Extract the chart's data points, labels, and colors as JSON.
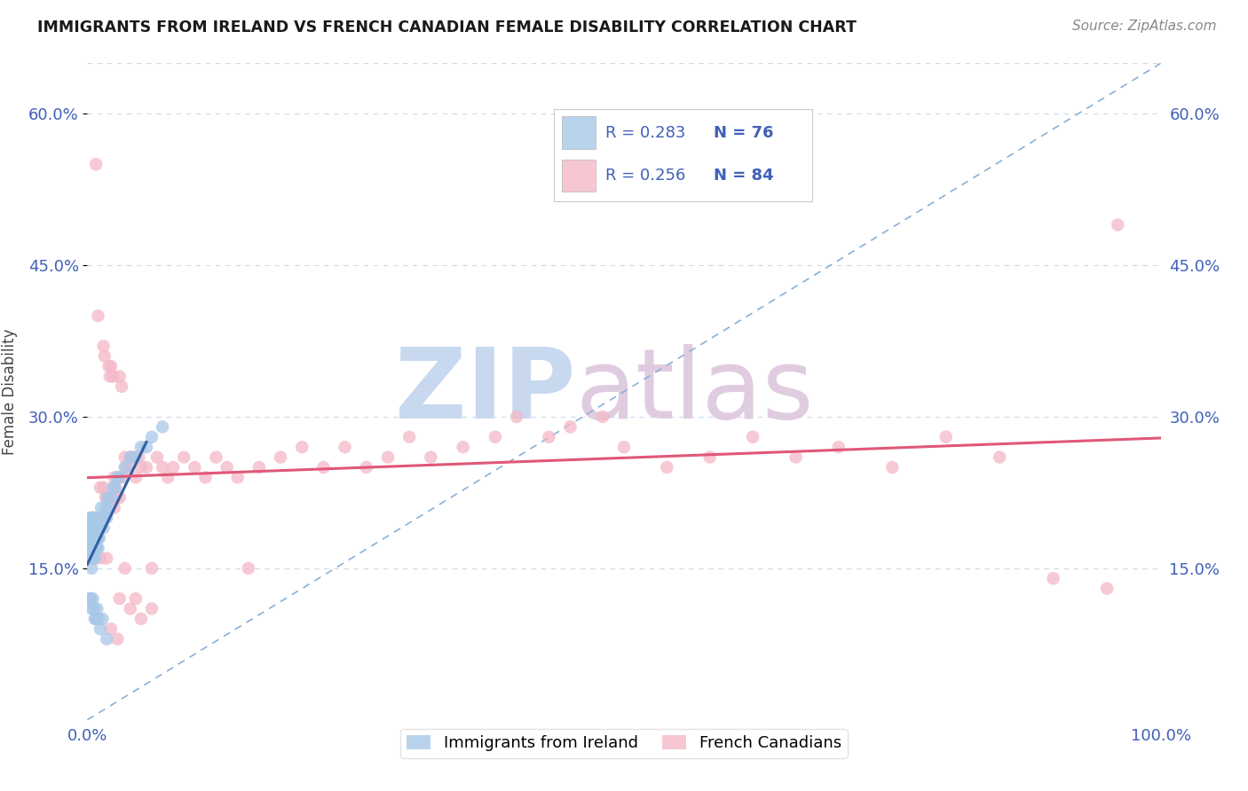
{
  "title": "IMMIGRANTS FROM IRELAND VS FRENCH CANADIAN FEMALE DISABILITY CORRELATION CHART",
  "source": "Source: ZipAtlas.com",
  "ylabel": "Female Disability",
  "xlim": [
    0,
    1.0
  ],
  "ylim": [
    0.0,
    0.65
  ],
  "yticks": [
    0.15,
    0.3,
    0.45,
    0.6
  ],
  "ytick_labels": [
    "15.0%",
    "30.0%",
    "45.0%",
    "60.0%"
  ],
  "xtick_labels": [
    "0.0%",
    "",
    "",
    "",
    "",
    "",
    "",
    "",
    "",
    "",
    "100.0%"
  ],
  "legend_r1": "R = 0.283",
  "legend_n1": "N = 76",
  "legend_r2": "R = 0.256",
  "legend_n2": "N = 84",
  "color_ireland": "#a8c8e8",
  "color_french": "#f4b8c8",
  "trendline_ireland_color": "#3060a0",
  "trendline_french_color": "#e05878",
  "diagonal_color": "#8ab0d8",
  "background_color": "#ffffff",
  "tick_label_color": "#4060b8",
  "grid_color": "#d0d8e8",
  "ireland_x": [
    0.001,
    0.001,
    0.002,
    0.002,
    0.002,
    0.002,
    0.003,
    0.003,
    0.003,
    0.003,
    0.003,
    0.004,
    0.004,
    0.004,
    0.004,
    0.004,
    0.005,
    0.005,
    0.005,
    0.005,
    0.005,
    0.006,
    0.006,
    0.006,
    0.006,
    0.006,
    0.007,
    0.007,
    0.007,
    0.007,
    0.008,
    0.008,
    0.008,
    0.008,
    0.009,
    0.009,
    0.009,
    0.01,
    0.01,
    0.01,
    0.011,
    0.011,
    0.012,
    0.012,
    0.013,
    0.014,
    0.015,
    0.016,
    0.017,
    0.018,
    0.019,
    0.02,
    0.022,
    0.024,
    0.026,
    0.028,
    0.03,
    0.035,
    0.04,
    0.045,
    0.05,
    0.055,
    0.06,
    0.07,
    0.002,
    0.003,
    0.004,
    0.005,
    0.006,
    0.007,
    0.008,
    0.009,
    0.01,
    0.012,
    0.014,
    0.018
  ],
  "ireland_y": [
    0.18,
    0.16,
    0.19,
    0.17,
    0.18,
    0.16,
    0.2,
    0.18,
    0.17,
    0.19,
    0.16,
    0.18,
    0.17,
    0.19,
    0.2,
    0.15,
    0.17,
    0.18,
    0.16,
    0.19,
    0.2,
    0.18,
    0.17,
    0.19,
    0.16,
    0.2,
    0.18,
    0.17,
    0.19,
    0.16,
    0.18,
    0.17,
    0.19,
    0.2,
    0.18,
    0.17,
    0.19,
    0.18,
    0.2,
    0.17,
    0.19,
    0.18,
    0.2,
    0.19,
    0.21,
    0.2,
    0.19,
    0.2,
    0.21,
    0.2,
    0.22,
    0.21,
    0.22,
    0.23,
    0.23,
    0.24,
    0.24,
    0.25,
    0.26,
    0.26,
    0.27,
    0.27,
    0.28,
    0.29,
    0.12,
    0.12,
    0.11,
    0.12,
    0.11,
    0.1,
    0.1,
    0.11,
    0.1,
    0.09,
    0.1,
    0.08
  ],
  "france_x": [
    0.005,
    0.008,
    0.01,
    0.012,
    0.015,
    0.015,
    0.016,
    0.017,
    0.018,
    0.019,
    0.02,
    0.021,
    0.022,
    0.023,
    0.024,
    0.025,
    0.026,
    0.027,
    0.028,
    0.03,
    0.03,
    0.032,
    0.034,
    0.035,
    0.036,
    0.038,
    0.04,
    0.042,
    0.045,
    0.048,
    0.05,
    0.055,
    0.06,
    0.065,
    0.07,
    0.075,
    0.08,
    0.09,
    0.1,
    0.11,
    0.12,
    0.13,
    0.14,
    0.15,
    0.16,
    0.18,
    0.2,
    0.22,
    0.24,
    0.26,
    0.28,
    0.3,
    0.32,
    0.35,
    0.38,
    0.4,
    0.43,
    0.45,
    0.48,
    0.5,
    0.54,
    0.58,
    0.62,
    0.66,
    0.7,
    0.75,
    0.8,
    0.85,
    0.9,
    0.95,
    0.96,
    0.01,
    0.02,
    0.025,
    0.03,
    0.035,
    0.04,
    0.045,
    0.05,
    0.06,
    0.012,
    0.018,
    0.022,
    0.028
  ],
  "france_y": [
    0.18,
    0.55,
    0.2,
    0.23,
    0.23,
    0.37,
    0.36,
    0.22,
    0.22,
    0.22,
    0.35,
    0.34,
    0.35,
    0.22,
    0.34,
    0.24,
    0.23,
    0.22,
    0.24,
    0.34,
    0.22,
    0.33,
    0.24,
    0.26,
    0.25,
    0.25,
    0.26,
    0.26,
    0.24,
    0.26,
    0.25,
    0.25,
    0.15,
    0.26,
    0.25,
    0.24,
    0.25,
    0.26,
    0.25,
    0.24,
    0.26,
    0.25,
    0.24,
    0.15,
    0.25,
    0.26,
    0.27,
    0.25,
    0.27,
    0.25,
    0.26,
    0.28,
    0.26,
    0.27,
    0.28,
    0.3,
    0.28,
    0.29,
    0.3,
    0.27,
    0.25,
    0.26,
    0.28,
    0.26,
    0.27,
    0.25,
    0.28,
    0.26,
    0.14,
    0.13,
    0.49,
    0.4,
    0.22,
    0.21,
    0.12,
    0.15,
    0.11,
    0.12,
    0.1,
    0.11,
    0.16,
    0.16,
    0.09,
    0.08
  ]
}
